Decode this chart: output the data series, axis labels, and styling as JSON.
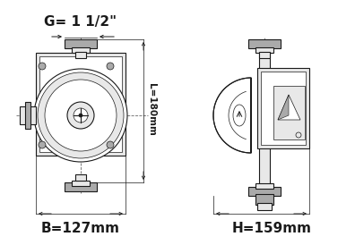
{
  "bg_color": "#ffffff",
  "line_color": "#1a1a1a",
  "dim_color": "#1a1a1a",
  "gray_fill": "#cccccc",
  "light_gray": "#e8e8e8",
  "mid_gray": "#aaaaaa",
  "title": "",
  "label_G": "G= 1 1/2\"",
  "label_B": "B=127mm",
  "label_L": "L=180mm",
  "label_H": "H=159mm",
  "label_fontsize": 11,
  "dim_fontsize": 7.5
}
